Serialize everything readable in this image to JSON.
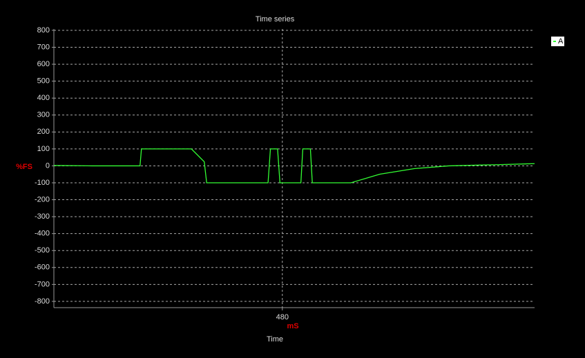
{
  "chart_data": {
    "type": "line",
    "title": "Time series",
    "ylabel": "%FS",
    "xunit": "mS",
    "xlabel": "Time",
    "x": [
      0,
      80,
      181,
      184,
      289,
      316,
      321,
      450,
      455,
      470,
      475,
      519,
      523,
      539,
      543,
      624,
      685,
      758,
      830,
      903,
      932,
      1010
    ],
    "series": [
      {
        "name": "A",
        "color": "#33ff33",
        "values": [
          2,
          0,
          0,
          100,
          100,
          24,
          -100,
          -100,
          100,
          100,
          -100,
          -100,
          100,
          100,
          -100,
          -100,
          -49,
          -16,
          0,
          5,
          7,
          13
        ]
      }
    ],
    "xlim": [
      0,
      1010
    ],
    "xticks": [
      480
    ],
    "ylim": [
      -837,
      808
    ],
    "yticks": [
      -800,
      -700,
      -600,
      -500,
      -400,
      -300,
      -200,
      -100,
      0,
      100,
      200,
      300,
      400,
      500,
      600,
      700,
      800
    ],
    "grid": true,
    "legend": "top-right"
  }
}
